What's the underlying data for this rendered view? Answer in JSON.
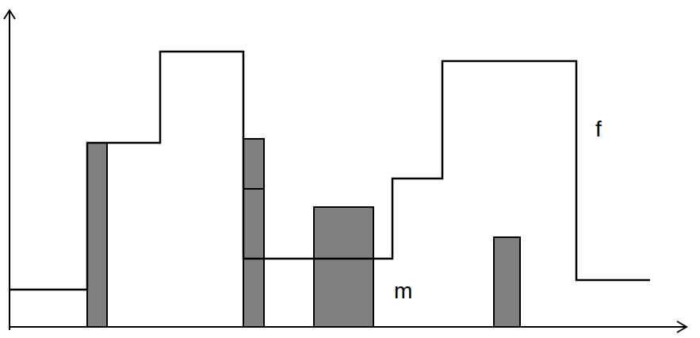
{
  "chart_data": {
    "type": "step",
    "xlim": [
      0,
      85
    ],
    "ylim": [
      0,
      39
    ],
    "tick_labels": false,
    "series": [
      {
        "name": "f",
        "type": "line",
        "line_style": "step",
        "color": "#000000",
        "x": [
          0,
          9.8,
          19,
          29.5,
          48.3,
          54.6,
          71.5,
          80.8
        ],
        "values": [
          4.7,
          23.2,
          34.7,
          8.6,
          18.7,
          33.5,
          5.9,
          5.9
        ]
      },
      {
        "name": "m",
        "type": "bar",
        "stacked": true,
        "color": "#808080",
        "bars": [
          {
            "x": [
              9.8,
              12.3
            ],
            "values": [
              23.2
            ]
          },
          {
            "x": [
              29.5,
              32.1
            ],
            "values": [
              17.4,
              6.3
            ]
          },
          {
            "x": [
              38.4,
              45.9
            ],
            "values": [
              15.1
            ]
          },
          {
            "x": [
              61.1,
              64.4
            ],
            "values": [
              11.3
            ]
          }
        ]
      }
    ]
  }
}
